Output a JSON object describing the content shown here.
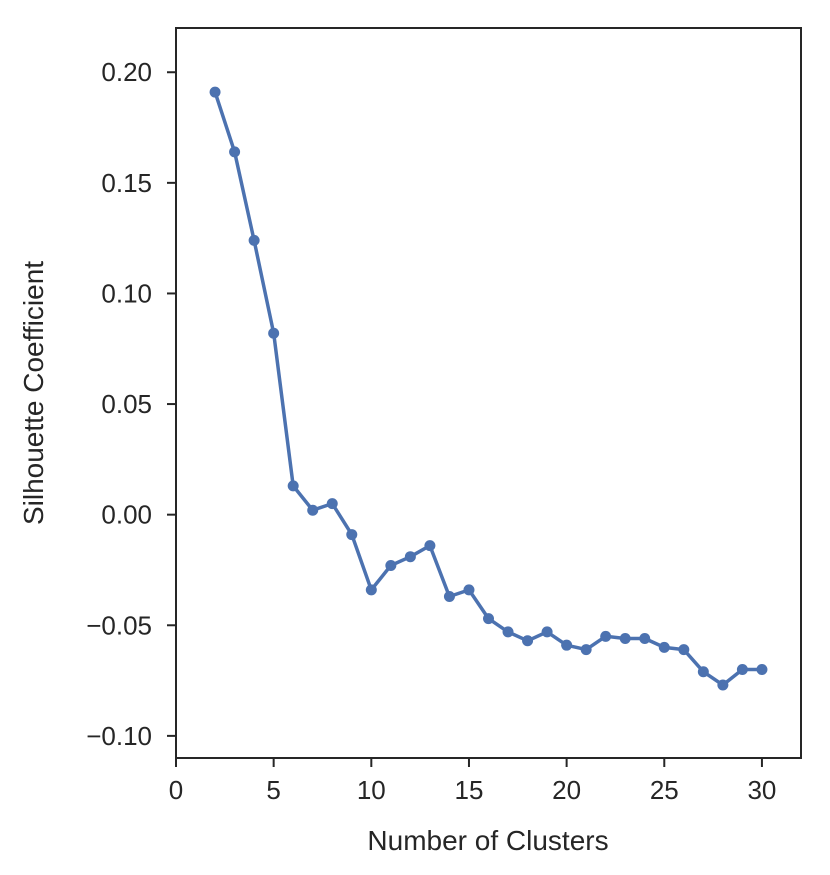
{
  "chart_data": {
    "type": "line",
    "title": "",
    "xlabel": "Number of Clusters",
    "ylabel": "Silhouette Coefficient",
    "xlim": [
      0,
      32
    ],
    "ylim": [
      -0.11,
      0.22
    ],
    "xticks": [
      0,
      5,
      10,
      15,
      20,
      25,
      30
    ],
    "xtick_labels": [
      "0",
      "5",
      "10",
      "15",
      "20",
      "25",
      "30"
    ],
    "yticks": [
      -0.1,
      -0.05,
      0.0,
      0.05,
      0.1,
      0.15,
      0.2
    ],
    "ytick_labels": [
      "−0.10",
      "−0.05",
      "0.00",
      "0.05",
      "0.10",
      "0.15",
      "0.20"
    ],
    "grid": false,
    "colors": {
      "series": "#4c72b0",
      "axes": "#262626"
    },
    "series": [
      {
        "x": [
          2,
          3,
          4,
          5,
          6,
          7,
          8,
          9,
          10,
          11,
          12,
          13,
          14,
          15,
          16,
          17,
          18,
          19,
          20,
          21,
          22,
          23,
          24,
          25,
          26,
          27,
          28,
          29,
          30
        ],
        "y": [
          0.191,
          0.164,
          0.124,
          0.082,
          0.013,
          0.002,
          0.005,
          -0.009,
          -0.034,
          -0.023,
          -0.019,
          -0.014,
          -0.037,
          -0.034,
          -0.047,
          -0.053,
          -0.057,
          -0.053,
          -0.059,
          -0.061,
          -0.055,
          -0.056,
          -0.056,
          -0.06,
          -0.061,
          -0.071,
          -0.077,
          -0.07,
          -0.07
        ]
      }
    ]
  }
}
